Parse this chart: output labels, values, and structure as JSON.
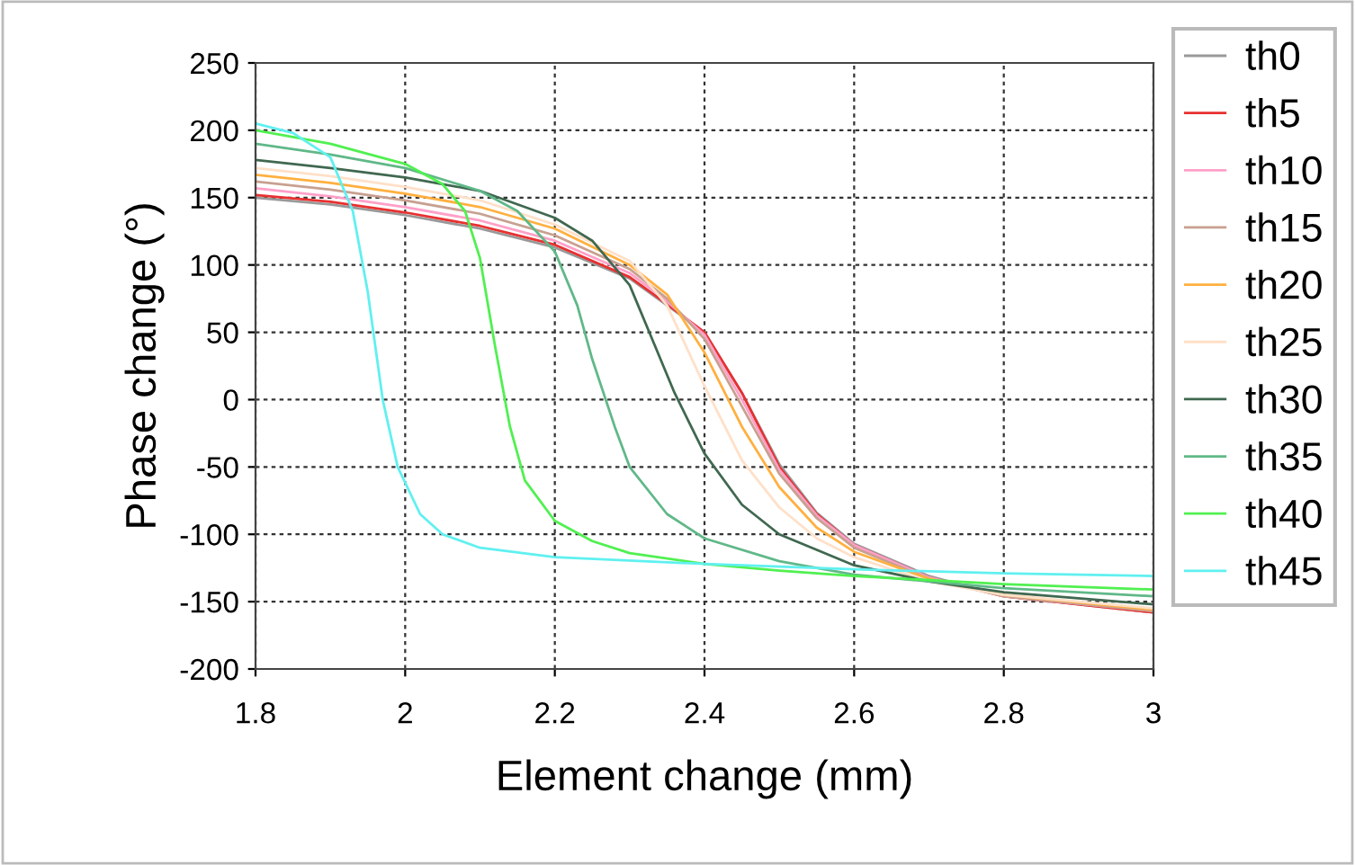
{
  "chart_data": {
    "type": "line",
    "xlabel": "Element change (mm)",
    "ylabel": "Phase change (°)",
    "xlim": [
      1.8,
      3
    ],
    "xticks": [
      1.8,
      2,
      2.2,
      2.4,
      2.6,
      2.8,
      3
    ],
    "ylim": [
      -200,
      250
    ],
    "yticks": [
      -200,
      -150,
      -100,
      -50,
      0,
      50,
      100,
      150,
      200,
      250
    ],
    "grid": true,
    "legend": "right",
    "marker": "none",
    "line_style": "solid",
    "series": [
      {
        "name": "th0",
        "color": "#999999",
        "x": [
          1.8,
          1.9,
          2.0,
          2.1,
          2.2,
          2.3,
          2.35,
          2.4,
          2.45,
          2.5,
          2.55,
          2.6,
          2.7,
          2.8,
          3.0
        ],
        "values": [
          150,
          145,
          137,
          127,
          113,
          90,
          70,
          50,
          5,
          -48,
          -84,
          -107,
          -131,
          -146,
          -158
        ]
      },
      {
        "name": "th5",
        "color": "#e83030",
        "x": [
          1.8,
          1.9,
          2.0,
          2.1,
          2.2,
          2.3,
          2.35,
          2.4,
          2.45,
          2.5,
          2.55,
          2.6,
          2.7,
          2.8,
          3.0
        ],
        "values": [
          152,
          147,
          139,
          129,
          115,
          91,
          71,
          50,
          5,
          -50,
          -85,
          -108,
          -132,
          -146,
          -158
        ]
      },
      {
        "name": "th10",
        "color": "#ffa0c8",
        "x": [
          1.8,
          1.9,
          2.0,
          2.1,
          2.2,
          2.3,
          2.35,
          2.4,
          2.45,
          2.5,
          2.55,
          2.6,
          2.7,
          2.8,
          3.0
        ],
        "values": [
          157,
          151,
          143,
          133,
          118,
          94,
          73,
          48,
          0,
          -52,
          -86,
          -108,
          -132,
          -146,
          -157
        ]
      },
      {
        "name": "th15",
        "color": "#c8a090",
        "x": [
          1.8,
          1.9,
          2.0,
          2.1,
          2.2,
          2.3,
          2.35,
          2.4,
          2.45,
          2.5,
          2.55,
          2.6,
          2.7,
          2.8,
          3.0
        ],
        "values": [
          162,
          156,
          148,
          138,
          122,
          97,
          75,
          45,
          -5,
          -55,
          -88,
          -110,
          -133,
          -146,
          -157
        ]
      },
      {
        "name": "th20",
        "color": "#ffb040",
        "x": [
          1.8,
          1.9,
          2.0,
          2.1,
          2.2,
          2.3,
          2.35,
          2.4,
          2.45,
          2.5,
          2.55,
          2.6,
          2.7,
          2.8,
          3.0
        ],
        "values": [
          167,
          161,
          153,
          143,
          127,
          100,
          78,
          35,
          -20,
          -65,
          -95,
          -113,
          -133,
          -145,
          -156
        ]
      },
      {
        "name": "th25",
        "color": "#ffe0c8",
        "x": [
          1.8,
          1.9,
          2.0,
          2.1,
          2.2,
          2.3,
          2.35,
          2.4,
          2.45,
          2.5,
          2.55,
          2.6,
          2.7,
          2.8,
          3.0
        ],
        "values": [
          172,
          166,
          158,
          148,
          130,
          103,
          70,
          10,
          -45,
          -80,
          -103,
          -117,
          -135,
          -145,
          -155
        ]
      },
      {
        "name": "th30",
        "color": "#406850",
        "x": [
          1.8,
          1.9,
          2.0,
          2.1,
          2.2,
          2.25,
          2.3,
          2.33,
          2.36,
          2.4,
          2.45,
          2.5,
          2.6,
          2.7,
          2.8,
          3.0
        ],
        "values": [
          178,
          172,
          165,
          155,
          135,
          118,
          85,
          45,
          5,
          -40,
          -78,
          -100,
          -123,
          -135,
          -143,
          -152
        ]
      },
      {
        "name": "th35",
        "color": "#60b888",
        "x": [
          1.8,
          1.9,
          2.0,
          2.1,
          2.15,
          2.2,
          2.23,
          2.25,
          2.28,
          2.3,
          2.35,
          2.4,
          2.5,
          2.6,
          2.8,
          3.0
        ],
        "values": [
          190,
          182,
          172,
          155,
          140,
          110,
          70,
          30,
          -20,
          -50,
          -85,
          -103,
          -120,
          -130,
          -140,
          -146
        ]
      },
      {
        "name": "th40",
        "color": "#50f050",
        "x": [
          1.8,
          1.9,
          2.0,
          2.05,
          2.08,
          2.1,
          2.12,
          2.14,
          2.16,
          2.2,
          2.25,
          2.3,
          2.4,
          2.5,
          2.6,
          2.8,
          3.0
        ],
        "values": [
          200,
          190,
          175,
          160,
          140,
          105,
          40,
          -20,
          -60,
          -90,
          -105,
          -114,
          -122,
          -127,
          -131,
          -137,
          -141
        ]
      },
      {
        "name": "th45",
        "color": "#60f0f0",
        "x": [
          1.8,
          1.85,
          1.9,
          1.93,
          1.95,
          1.97,
          1.99,
          2.02,
          2.05,
          2.1,
          2.2,
          2.4,
          2.6,
          2.8,
          3.0
        ],
        "values": [
          205,
          198,
          180,
          140,
          80,
          0,
          -50,
          -85,
          -100,
          -110,
          -117,
          -122,
          -126,
          -129,
          -131
        ]
      }
    ]
  }
}
